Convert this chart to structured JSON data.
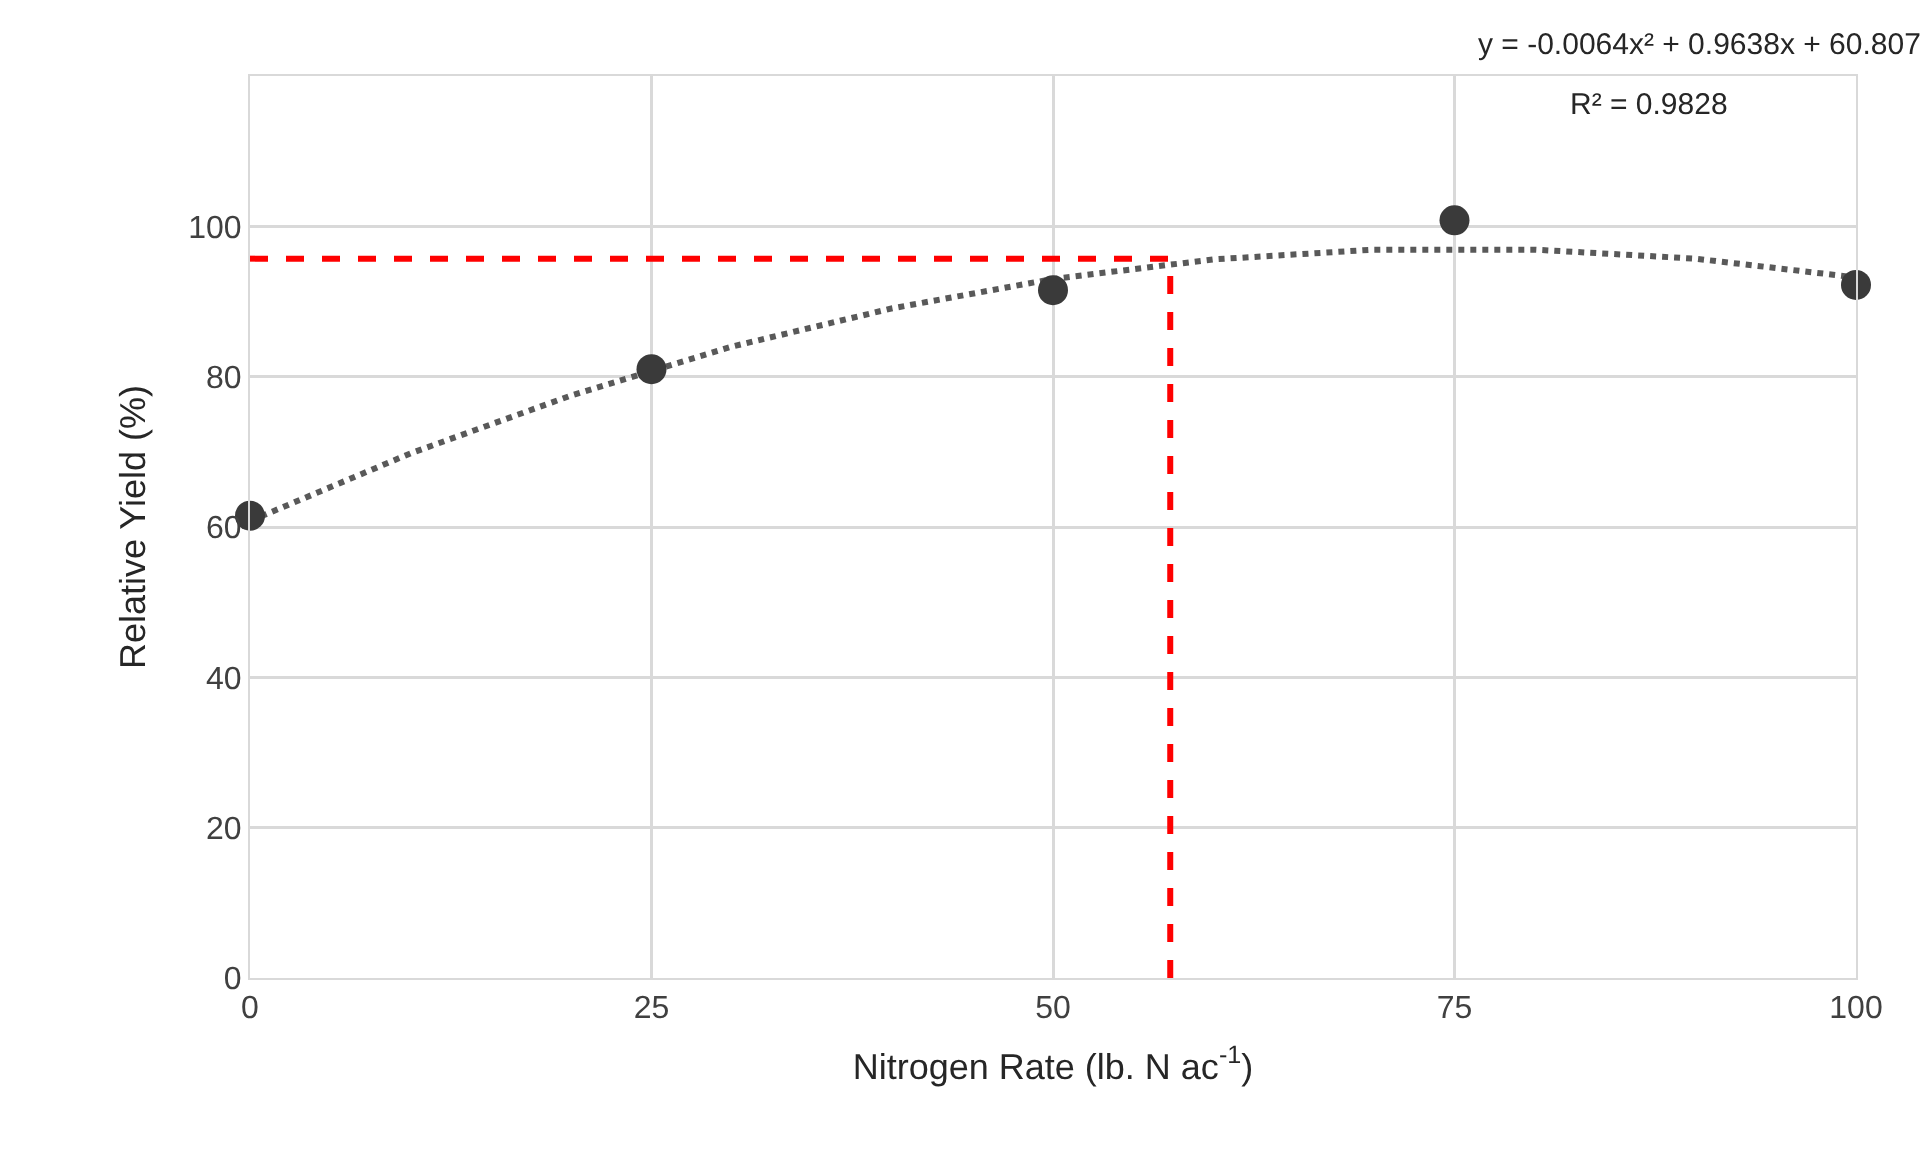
{
  "chart_data": {
    "type": "scatter",
    "xlabel": "Nitrogen Rate (lb. N ac$^{-1}$)",
    "ylabel": "Relative Yield (%)",
    "annotations": [
      "y = -0.0064x² + 0.9638x + 60.807",
      "R² = 0.9828"
    ],
    "x": [
      0,
      25,
      50,
      75,
      100
    ],
    "series": [
      {
        "type": "line",
        "color": "#595959",
        "line_style": "dotted",
        "marker": "none",
        "x": [
          0,
          10,
          20,
          30,
          40,
          50,
          60,
          70,
          80,
          90,
          100
        ],
        "values": [
          60.8,
          69.8,
          77.5,
          84.0,
          89.1,
          93.0,
          95.6,
          96.9,
          96.9,
          95.7,
          93.2
        ]
      },
      {
        "type": "scatter",
        "color": "#3a3a3a",
        "marker": "circle",
        "values": [
          61.5,
          81,
          91.5,
          100.8,
          92.2
        ]
      },
      {
        "type": "line",
        "color": "#ff0000",
        "line_style": "dashed",
        "marker": "none",
        "x": [
          0,
          57.3
        ],
        "values": [
          95.7,
          95.7
        ]
      },
      {
        "type": "line",
        "color": "#ff0000",
        "line_style": "dashed",
        "marker": "none",
        "x": [
          57.3,
          57.3
        ],
        "values": [
          0,
          95.7
        ]
      }
    ],
    "xlim": [
      0,
      100
    ],
    "xticks": [
      0,
      25,
      50,
      75,
      100
    ],
    "ylim": [
      0,
      120
    ],
    "yticks": [
      0,
      20,
      40,
      60,
      80,
      100,
      {
        "value": 120,
        "label": null
      }
    ],
    "grid": true
  }
}
